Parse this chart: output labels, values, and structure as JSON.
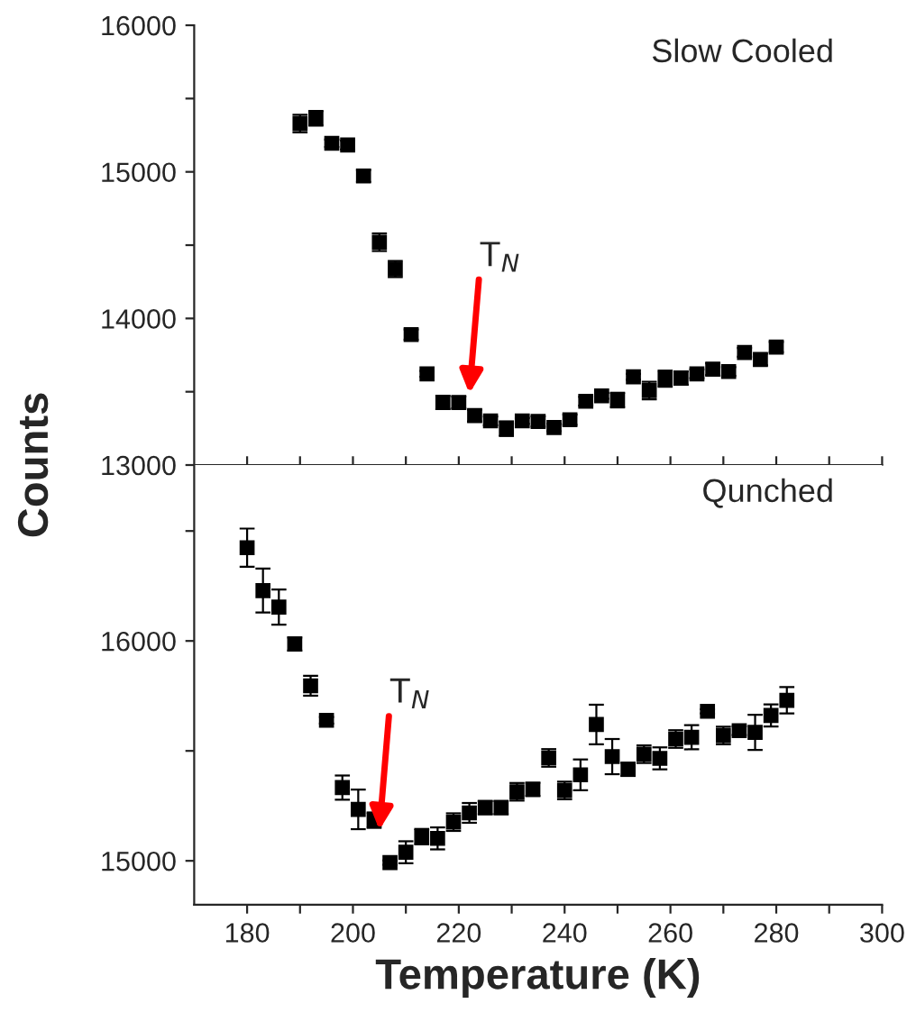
{
  "chart_data": [
    {
      "type": "scatter",
      "marker": "square",
      "tick_labels": "y",
      "grid": false,
      "legend": false,
      "x": [
        190,
        193,
        196,
        199,
        202,
        205,
        208,
        211,
        214,
        217,
        220,
        223,
        226,
        229,
        232,
        235,
        238,
        241,
        244,
        247,
        250,
        253,
        256,
        259,
        262,
        265,
        268,
        271,
        274,
        277,
        280
      ],
      "series": [
        {
          "color": "#000000",
          "values": [
            15329,
            15366,
            15195,
            15183,
            14972,
            14520,
            14337,
            13890,
            13622,
            13427,
            13427,
            13337,
            13301,
            13248,
            13301,
            13297,
            13256,
            13309,
            13435,
            13472,
            13443,
            13602,
            13508,
            13589,
            13593,
            13622,
            13654,
            13638,
            13768,
            13720,
            13805
          ],
          "errors": [
            60,
            50,
            25,
            30,
            40,
            60,
            55,
            35,
            20,
            45,
            40,
            40,
            30,
            50,
            20,
            35,
            25,
            35,
            30,
            20,
            50,
            20,
            60,
            55,
            45,
            30,
            40,
            30,
            30,
            40,
            35
          ]
        }
      ],
      "xlim": [
        170,
        300
      ],
      "xticks": [
        {
          "value": 180,
          "label": null
        },
        {
          "value": 190,
          "label": null
        },
        {
          "value": 200,
          "label": null
        },
        {
          "value": 210,
          "label": null
        },
        {
          "value": 220,
          "label": null
        },
        {
          "value": 230,
          "label": null
        },
        {
          "value": 240,
          "label": null
        },
        {
          "value": 250,
          "label": null
        },
        {
          "value": 260,
          "label": null
        },
        {
          "value": 270,
          "label": null
        },
        {
          "value": 280,
          "label": null
        },
        {
          "value": 290,
          "label": null
        },
        {
          "value": 300,
          "label": null
        }
      ],
      "ylim": [
        13000,
        16000
      ],
      "yticks": [
        13000,
        {
          "value": 13500,
          "label": null
        },
        14000,
        {
          "value": 14500,
          "label": null
        },
        15000,
        {
          "value": 15500,
          "label": null
        },
        16000
      ],
      "annotations": [
        "Slow Cooled",
        {
          "text": "T$_{N}$",
          "x": 222,
          "y": 13488
        }
      ]
    },
    {
      "type": "scatter",
      "marker": "square",
      "grid": false,
      "legend": false,
      "xlabel": "Temperature (K)",
      "ylabel": "Counts",
      "x": [
        180,
        183,
        186,
        189,
        192,
        195,
        198,
        201,
        204,
        207,
        210,
        213,
        216,
        219,
        222,
        225,
        228,
        231,
        234,
        237,
        240,
        243,
        246,
        249,
        252,
        255,
        258,
        261,
        264,
        267,
        270,
        273,
        276,
        279,
        282
      ],
      "series": [
        {
          "color": "#000000",
          "values": [
            16424,
            16229,
            16154,
            15986,
            15796,
            15639,
            15333,
            15234,
            15185,
            14992,
            15039,
            15110,
            15102,
            15176,
            15218,
            15242,
            15242,
            15314,
            15325,
            15468,
            15320,
            15391,
            15620,
            15474,
            15416,
            15485,
            15466,
            15554,
            15562,
            15680,
            15570,
            15592,
            15584,
            15661,
            15730
          ],
          "errors": [
            87,
            100,
            80,
            30,
            45,
            15,
            55,
            90,
            35,
            10,
            50,
            35,
            50,
            40,
            45,
            30,
            30,
            40,
            30,
            40,
            40,
            70,
            90,
            80,
            30,
            40,
            50,
            40,
            55,
            10,
            40,
            20,
            80,
            50,
            60
          ]
        }
      ],
      "xlim": [
        170,
        300
      ],
      "xticks": [
        180,
        {
          "value": 190,
          "label": null
        },
        200,
        {
          "value": 210,
          "label": null
        },
        220,
        {
          "value": 230,
          "label": null
        },
        240,
        {
          "value": 250,
          "label": null
        },
        260,
        {
          "value": 270,
          "label": null
        },
        280,
        {
          "value": 290,
          "label": null
        },
        300
      ],
      "ylim": [
        14800,
        16800
      ],
      "yticks": [
        15000,
        {
          "value": 15500,
          "label": null
        },
        16000,
        {
          "value": 16500,
          "label": null
        }
      ],
      "annotations": [
        "Qunched",
        {
          "text": "T$_{N}$",
          "x": 205,
          "y": 15140
        }
      ]
    }
  ]
}
